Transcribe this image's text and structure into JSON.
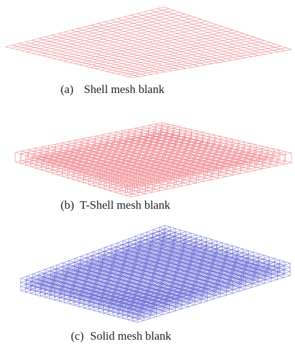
{
  "panels": [
    {
      "label": "(a)",
      "caption": "Shell mesh blank"
    },
    {
      "label": "(b)",
      "caption": "T-Shell mesh blank"
    },
    {
      "label": "(c)",
      "caption": "Solid mesh blank"
    }
  ]
}
